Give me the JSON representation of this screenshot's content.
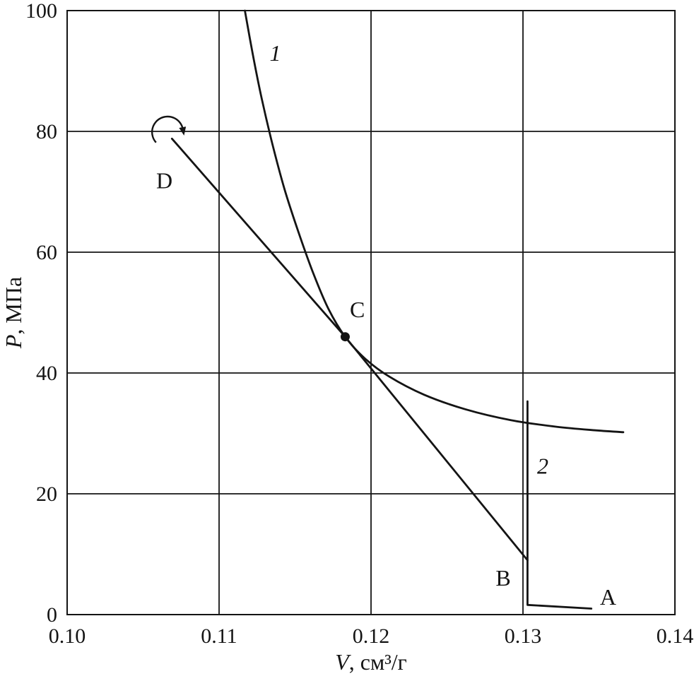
{
  "figure": {
    "background": "#ffffff",
    "ink": "#141414",
    "description": "P-V diagram with isotherm 1, straight line D-B tangent at point C, and isobaric-isochoric path 2 (A-B)"
  },
  "chart_data": {
    "type": "line",
    "title": "",
    "xlabel": "V, см³/г",
    "ylabel": "P, МПа",
    "xlim": [
      0.1,
      0.14
    ],
    "ylim": [
      0,
      100
    ],
    "grid": true,
    "xticks": {
      "values": [
        0.1,
        0.11,
        0.12,
        0.13,
        0.14
      ],
      "labels": [
        "0.10",
        "0.11",
        "0.12",
        "0.13",
        "0.14"
      ]
    },
    "yticks": {
      "values": [
        0,
        20,
        40,
        60,
        80,
        100
      ],
      "labels": [
        "0",
        "20",
        "40",
        "60",
        "80",
        "100"
      ]
    },
    "series": [
      {
        "name": "curve-1",
        "legend": "1",
        "smooth": true,
        "points": [
          [
            0.1117,
            100
          ],
          [
            0.1122,
            93
          ],
          [
            0.1128,
            85.5
          ],
          [
            0.1135,
            78
          ],
          [
            0.1143,
            70.5
          ],
          [
            0.1152,
            63.5
          ],
          [
            0.1162,
            56.5
          ],
          [
            0.1172,
            50.6
          ],
          [
            0.1183,
            46.0
          ],
          [
            0.1196,
            42.4
          ],
          [
            0.1212,
            39.4
          ],
          [
            0.1235,
            36.4
          ],
          [
            0.1262,
            34.0
          ],
          [
            0.1292,
            32.2
          ],
          [
            0.1322,
            31.1
          ],
          [
            0.1348,
            30.5
          ],
          [
            0.1366,
            30.2
          ]
        ]
      },
      {
        "name": "line-D-B",
        "legend": "",
        "smooth": false,
        "points": [
          [
            0.1069,
            78.8
          ],
          [
            0.1183,
            46.0
          ],
          [
            0.1303,
            9.0
          ]
        ]
      },
      {
        "name": "curve-2",
        "legend": "2",
        "smooth": false,
        "points": [
          [
            0.1303,
            35.3
          ],
          [
            0.1303,
            1.6
          ],
          [
            0.1345,
            1.0
          ]
        ]
      }
    ],
    "markers": [
      {
        "label": "C",
        "x": 0.1183,
        "y": 46.0
      }
    ],
    "labels": [
      {
        "text": "1",
        "x": 0.1137,
        "y": 93.0,
        "italic": true
      },
      {
        "text": "2",
        "x": 0.1313,
        "y": 24.6,
        "italic": true
      },
      {
        "text": "D",
        "x": 0.1064,
        "y": 71.9,
        "italic": false
      },
      {
        "text": "C",
        "x": 0.1191,
        "y": 50.5,
        "italic": false
      },
      {
        "text": "B",
        "x": 0.1287,
        "y": 6.1,
        "italic": false
      },
      {
        "text": "A",
        "x": 0.1356,
        "y": 2.9,
        "italic": false
      }
    ],
    "annotations": [
      {
        "type": "rotation-arrow",
        "x": 0.1067,
        "y": 79.5
      }
    ]
  }
}
